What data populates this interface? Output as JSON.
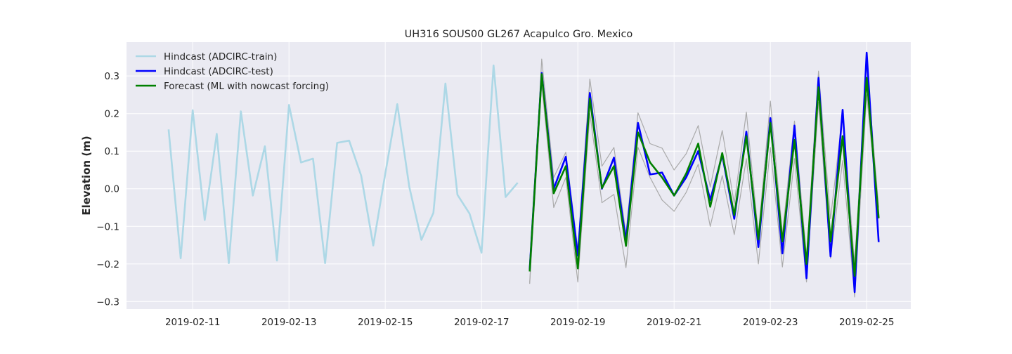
{
  "chart_data": {
    "type": "line",
    "title": "UH316 SOUS00 GL267 Acapulco Gro. Mexico",
    "xlabel": "",
    "ylabel": "Elevation (m)",
    "x_range": [
      "2019-02-09T15:00",
      "2019-02-25T22:00"
    ],
    "ylim": [
      -0.32,
      0.39
    ],
    "xticks": [
      "2019-02-11",
      "2019-02-13",
      "2019-02-15",
      "2019-02-17",
      "2019-02-19",
      "2019-02-21",
      "2019-02-23",
      "2019-02-25"
    ],
    "yticks": [
      -0.3,
      -0.2,
      -0.1,
      0.0,
      0.1,
      0.2,
      0.3
    ],
    "ytick_labels": [
      "−0.3",
      "−0.2",
      "−0.1",
      "0.0",
      "0.1",
      "0.2",
      "0.3"
    ],
    "grid": true,
    "legend_position": "top-left",
    "colors": {
      "background": "#eaeaf2",
      "grid": "#ffffff",
      "train": "#add8e6",
      "test": "#0000ff",
      "forecast": "#008000",
      "band": "#aaaaaa"
    },
    "series": [
      {
        "name": "Hindcast (ADCIRC-train)",
        "color": "#add8e6",
        "x": [
          "2019-02-10T12:00",
          "2019-02-10T18:00",
          "2019-02-11T00:00",
          "2019-02-11T06:00",
          "2019-02-11T12:00",
          "2019-02-11T18:00",
          "2019-02-12T00:00",
          "2019-02-12T06:00",
          "2019-02-12T12:00",
          "2019-02-12T18:00",
          "2019-02-13T00:00",
          "2019-02-13T06:00",
          "2019-02-13T12:00",
          "2019-02-13T18:00",
          "2019-02-14T00:00",
          "2019-02-14T06:00",
          "2019-02-14T12:00",
          "2019-02-14T18:00",
          "2019-02-15T00:00",
          "2019-02-15T06:00",
          "2019-02-15T12:00",
          "2019-02-15T18:00",
          "2019-02-16T00:00",
          "2019-02-16T06:00",
          "2019-02-16T12:00",
          "2019-02-16T18:00",
          "2019-02-17T00:00",
          "2019-02-17T06:00",
          "2019-02-17T12:00",
          "2019-02-17T18:00"
        ],
        "values": [
          0.158,
          -0.185,
          0.209,
          -0.083,
          0.146,
          -0.198,
          0.206,
          -0.018,
          0.113,
          -0.191,
          0.223,
          0.07,
          0.08,
          -0.198,
          0.122,
          0.128,
          0.035,
          -0.151,
          0.04,
          0.225,
          0.005,
          -0.136,
          -0.064,
          0.28,
          -0.016,
          -0.066,
          -0.17,
          0.328,
          -0.022,
          0.016
        ]
      },
      {
        "name": "Hindcast (ADCIRC-test)",
        "color": "#0000ff",
        "x": [
          "2019-02-18T00:00",
          "2019-02-18T06:00",
          "2019-02-18T12:00",
          "2019-02-18T18:00",
          "2019-02-19T00:00",
          "2019-02-19T06:00",
          "2019-02-19T12:00",
          "2019-02-19T18:00",
          "2019-02-20T00:00",
          "2019-02-20T06:00",
          "2019-02-20T12:00",
          "2019-02-20T18:00",
          "2019-02-21T00:00",
          "2019-02-21T06:00",
          "2019-02-21T12:00",
          "2019-02-21T18:00",
          "2019-02-22T00:00",
          "2019-02-22T06:00",
          "2019-02-22T12:00",
          "2019-02-22T18:00",
          "2019-02-23T00:00",
          "2019-02-23T06:00",
          "2019-02-23T12:00",
          "2019-02-23T18:00",
          "2019-02-24T00:00",
          "2019-02-24T06:00",
          "2019-02-24T12:00",
          "2019-02-24T18:00",
          "2019-02-25T00:00",
          "2019-02-25T06:00"
        ],
        "values": [
          -0.215,
          0.308,
          0.0,
          0.085,
          -0.178,
          0.255,
          0.0,
          0.083,
          -0.138,
          0.175,
          0.038,
          0.043,
          -0.018,
          0.03,
          0.1,
          -0.03,
          0.09,
          -0.08,
          0.152,
          -0.155,
          0.188,
          -0.172,
          0.168,
          -0.238,
          0.295,
          -0.18,
          0.21,
          -0.275,
          0.362,
          -0.142
        ]
      },
      {
        "name": "Forecast (ML with nowcast forcing)",
        "color": "#008000",
        "x": [
          "2019-02-18T00:00",
          "2019-02-18T06:00",
          "2019-02-18T12:00",
          "2019-02-18T18:00",
          "2019-02-19T00:00",
          "2019-02-19T06:00",
          "2019-02-19T12:00",
          "2019-02-19T18:00",
          "2019-02-20T00:00",
          "2019-02-20T06:00",
          "2019-02-20T12:00",
          "2019-02-20T18:00",
          "2019-02-21T00:00",
          "2019-02-21T06:00",
          "2019-02-21T12:00",
          "2019-02-21T18:00",
          "2019-02-22T00:00",
          "2019-02-22T06:00",
          "2019-02-22T12:00",
          "2019-02-22T18:00",
          "2019-02-23T00:00",
          "2019-02-23T06:00",
          "2019-02-23T12:00",
          "2019-02-23T18:00",
          "2019-02-24T00:00",
          "2019-02-24T06:00",
          "2019-02-24T12:00",
          "2019-02-24T18:00",
          "2019-02-25T00:00",
          "2019-02-25T06:00"
        ],
        "values": [
          -0.22,
          0.305,
          -0.012,
          0.06,
          -0.212,
          0.24,
          0.002,
          0.06,
          -0.152,
          0.15,
          0.07,
          0.03,
          -0.018,
          0.04,
          0.12,
          -0.048,
          0.095,
          -0.07,
          0.14,
          -0.135,
          0.175,
          -0.14,
          0.13,
          -0.2,
          0.27,
          -0.14,
          0.14,
          -0.232,
          0.295,
          -0.078
        ]
      },
      {
        "color": "#aaaaaa",
        "x": [
          "2019-02-18T00:00",
          "2019-02-18T06:00",
          "2019-02-18T12:00",
          "2019-02-18T18:00",
          "2019-02-19T00:00",
          "2019-02-19T06:00",
          "2019-02-19T12:00",
          "2019-02-19T18:00",
          "2019-02-20T00:00",
          "2019-02-20T06:00",
          "2019-02-20T12:00",
          "2019-02-20T18:00",
          "2019-02-21T00:00",
          "2019-02-21T06:00",
          "2019-02-21T12:00",
          "2019-02-21T18:00",
          "2019-02-22T00:00",
          "2019-02-22T06:00",
          "2019-02-22T12:00",
          "2019-02-22T18:00",
          "2019-02-23T00:00",
          "2019-02-23T06:00",
          "2019-02-23T12:00",
          "2019-02-23T18:00",
          "2019-02-24T00:00",
          "2019-02-24T06:00",
          "2019-02-24T12:00",
          "2019-02-24T18:00",
          "2019-02-25T00:00",
          "2019-02-25T06:00"
        ],
        "values": [
          -0.25,
          0.345,
          0.03,
          0.097,
          -0.16,
          0.292,
          0.06,
          0.11,
          -0.12,
          0.202,
          0.12,
          0.108,
          0.05,
          0.093,
          0.168,
          0.005,
          0.155,
          -0.04,
          0.204,
          -0.12,
          0.233,
          -0.12,
          0.18,
          -0.18,
          0.313,
          -0.08,
          0.2,
          -0.2,
          0.33,
          -0.05
        ]
      },
      {
        "color": "#aaaaaa",
        "x": [
          "2019-02-18T00:00",
          "2019-02-18T06:00",
          "2019-02-18T12:00",
          "2019-02-18T18:00",
          "2019-02-19T00:00",
          "2019-02-19T06:00",
          "2019-02-19T12:00",
          "2019-02-19T18:00",
          "2019-02-20T00:00",
          "2019-02-20T06:00",
          "2019-02-20T12:00",
          "2019-02-20T18:00",
          "2019-02-21T00:00",
          "2019-02-21T06:00",
          "2019-02-21T12:00",
          "2019-02-21T18:00",
          "2019-02-22T00:00",
          "2019-02-22T06:00",
          "2019-02-22T12:00",
          "2019-02-22T18:00",
          "2019-02-23T00:00",
          "2019-02-23T06:00",
          "2019-02-23T12:00",
          "2019-02-23T18:00",
          "2019-02-24T00:00",
          "2019-02-24T06:00",
          "2019-02-24T12:00",
          "2019-02-24T18:00",
          "2019-02-25T00:00",
          "2019-02-25T06:00"
        ],
        "values": [
          -0.253,
          0.28,
          -0.05,
          0.03,
          -0.248,
          0.2,
          -0.037,
          -0.015,
          -0.21,
          0.11,
          0.03,
          -0.03,
          -0.06,
          -0.01,
          0.065,
          -0.1,
          0.035,
          -0.122,
          0.08,
          -0.2,
          0.11,
          -0.208,
          0.08,
          -0.248,
          0.23,
          -0.185,
          0.075,
          -0.288,
          0.25,
          -0.08
        ]
      }
    ]
  }
}
